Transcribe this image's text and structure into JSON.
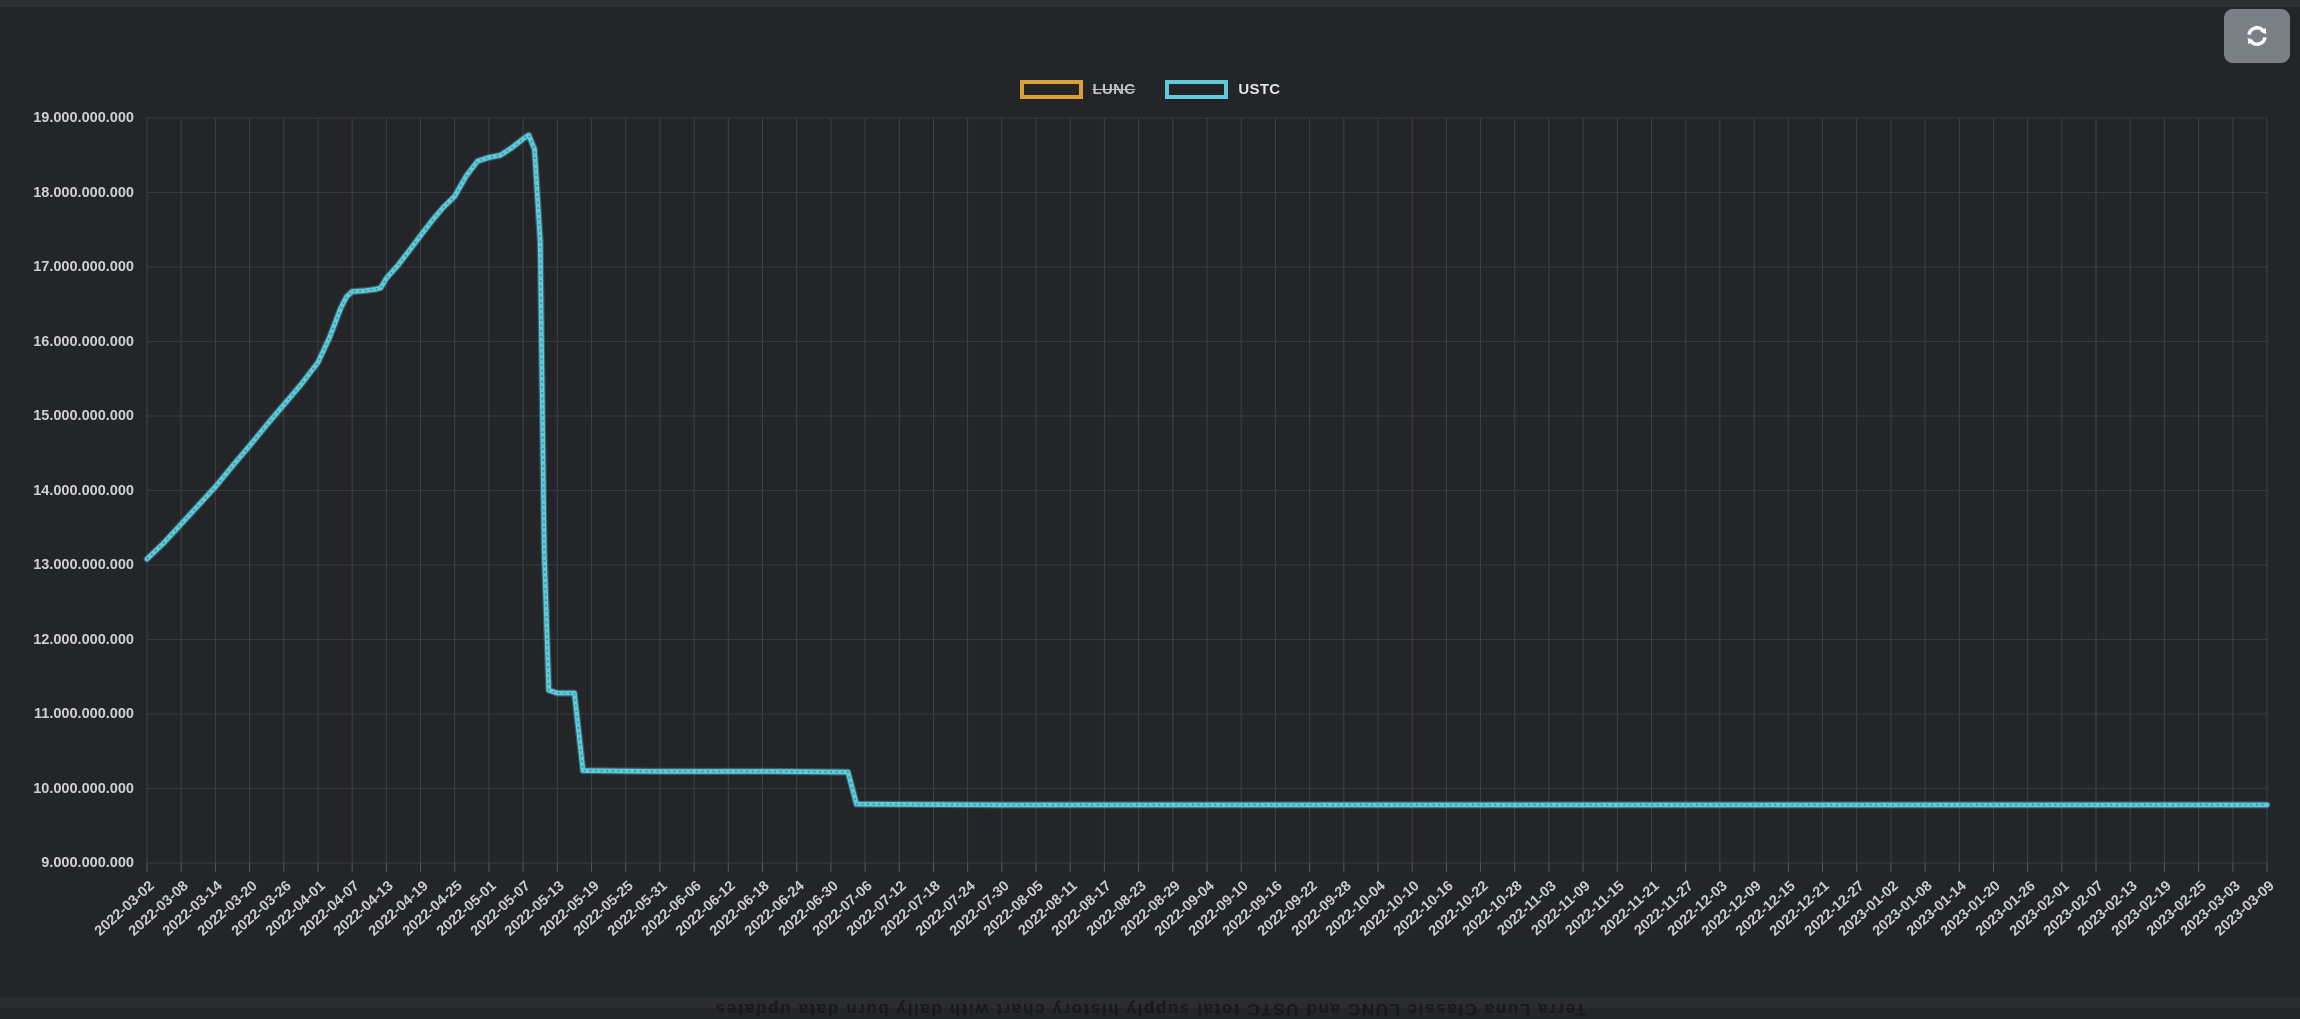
{
  "page": {
    "background": "#242529",
    "top_strip": {
      "color": "#2e2f33"
    },
    "bottom_strip": {
      "background": "#2b2c30",
      "text_color": "#17181c",
      "flipped": true,
      "text": "Terra Luna Classic LUNC and USTC total supply history chart with daily burn data updates"
    }
  },
  "toolbar": {
    "refresh_button": {
      "background": "#7a8085",
      "icon": "refresh-arrows",
      "icon_color": "#fdfdfd"
    }
  },
  "legend": {
    "items": [
      {
        "label": "LUNC",
        "color": "#dba03a",
        "hidden": true
      },
      {
        "label": "USTC",
        "color": "#5ecbdc",
        "hidden": false
      }
    ]
  },
  "chart_data": {
    "type": "line",
    "title": "",
    "grid": true,
    "legend_position": "top-center",
    "x_axis": {
      "start_date": "2022-03-02",
      "end_date": "2023-03-09",
      "tick_interval_days": 6,
      "tick_labels": [
        "2022-03-02",
        "2022-03-08",
        "2022-03-14",
        "2022-03-20",
        "2022-03-26",
        "2022-04-01",
        "2022-04-07",
        "2022-04-13",
        "2022-04-19",
        "2022-04-25",
        "2022-05-01",
        "2022-05-07",
        "2022-05-13",
        "2022-05-19",
        "2022-05-25",
        "2022-05-31",
        "2022-06-06",
        "2022-06-12",
        "2022-06-18",
        "2022-06-24",
        "2022-06-30",
        "2022-07-06",
        "2022-07-12",
        "2022-07-18",
        "2022-07-24",
        "2022-07-30",
        "2022-08-05",
        "2022-08-11",
        "2022-08-17",
        "2022-08-23",
        "2022-08-29",
        "2022-09-04",
        "2022-09-10",
        "2022-09-16",
        "2022-09-22",
        "2022-09-28",
        "2022-10-04",
        "2022-10-10",
        "2022-10-16",
        "2022-10-22",
        "2022-10-28",
        "2022-11-03",
        "2022-11-09",
        "2022-11-15",
        "2022-11-21",
        "2022-11-27",
        "2022-12-03",
        "2022-12-09",
        "2022-12-15",
        "2022-12-21",
        "2022-12-27",
        "2023-01-02",
        "2023-01-08",
        "2023-01-14",
        "2023-01-20",
        "2023-01-26",
        "2023-02-01",
        "2023-02-07",
        "2023-02-13",
        "2023-02-19",
        "2023-02-25",
        "2023-03-03",
        "2023-03-09"
      ]
    },
    "y_axis": {
      "min": 9000000000,
      "max": 19000000000,
      "tick_step": 1000000000,
      "tick_labels": [
        "19.000.000.000",
        "18.000.000.000",
        "17.000.000.000",
        "16.000.000.000",
        "15.000.000.000",
        "14.000.000.000",
        "13.000.000.000",
        "12.000.000.000",
        "11.000.000.000",
        "10.000.000.000",
        "9.000.000.000"
      ]
    },
    "series": [
      {
        "name": "LUNC",
        "color": "#dba03a",
        "hidden": true,
        "points_day_value_billions": []
      },
      {
        "name": "USTC",
        "color": "#5ecbdc",
        "hidden": false,
        "points_day_value_billions": [
          [
            0,
            13.08
          ],
          [
            3,
            13.3
          ],
          [
            6,
            13.55
          ],
          [
            9,
            13.8
          ],
          [
            12,
            14.05
          ],
          [
            15,
            14.33
          ],
          [
            18,
            14.6
          ],
          [
            21,
            14.88
          ],
          [
            24,
            15.15
          ],
          [
            27,
            15.42
          ],
          [
            30,
            15.72
          ],
          [
            32,
            16.05
          ],
          [
            34,
            16.45
          ],
          [
            35,
            16.6
          ],
          [
            36,
            16.67
          ],
          [
            38,
            16.68
          ],
          [
            40,
            16.7
          ],
          [
            41,
            16.72
          ],
          [
            42,
            16.85
          ],
          [
            44,
            17.02
          ],
          [
            46,
            17.22
          ],
          [
            48,
            17.42
          ],
          [
            50,
            17.62
          ],
          [
            52,
            17.8
          ],
          [
            54,
            17.95
          ],
          [
            56,
            18.22
          ],
          [
            58,
            18.42
          ],
          [
            60,
            18.47
          ],
          [
            62,
            18.5
          ],
          [
            64,
            18.6
          ],
          [
            66,
            18.72
          ],
          [
            67,
            18.77
          ],
          [
            68,
            18.58
          ],
          [
            69,
            17.35
          ],
          [
            69.7,
            13.2
          ],
          [
            70.5,
            11.32
          ],
          [
            72,
            11.28
          ],
          [
            75,
            11.28
          ],
          [
            76.5,
            10.24
          ],
          [
            90,
            10.23
          ],
          [
            110,
            10.23
          ],
          [
            123,
            10.22
          ],
          [
            124.5,
            9.79
          ],
          [
            150,
            9.78
          ],
          [
            200,
            9.78
          ],
          [
            250,
            9.78
          ],
          [
            300,
            9.78
          ],
          [
            350,
            9.78
          ],
          [
            372,
            9.78
          ]
        ]
      }
    ]
  }
}
